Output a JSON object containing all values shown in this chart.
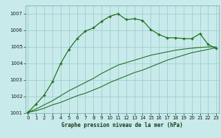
{
  "xlabel": "Graphe pression niveau de la mer (hPa)",
  "bg_color": "#c8eaea",
  "grid_color": "#9ecece",
  "line_color": "#1e6e1e",
  "ylim": [
    1001,
    1007.5
  ],
  "xlim": [
    -0.3,
    23.3
  ],
  "yticks": [
    1001,
    1002,
    1003,
    1004,
    1005,
    1006,
    1007
  ],
  "xticks": [
    0,
    1,
    2,
    3,
    4,
    5,
    6,
    7,
    8,
    9,
    10,
    11,
    12,
    13,
    14,
    15,
    16,
    17,
    18,
    19,
    20,
    21,
    22,
    23
  ],
  "series1_x": [
    0,
    1,
    2,
    3,
    4,
    5,
    6,
    7,
    8,
    9,
    10,
    11,
    12,
    13,
    14,
    15,
    16,
    17,
    18,
    19,
    20,
    21,
    22,
    23
  ],
  "series1_y": [
    1001.05,
    1001.55,
    1002.1,
    1002.9,
    1004.0,
    1004.85,
    1005.5,
    1005.95,
    1006.15,
    1006.55,
    1006.85,
    1007.0,
    1006.65,
    1006.7,
    1006.6,
    1006.05,
    1005.75,
    1005.55,
    1005.55,
    1005.5,
    1005.5,
    1005.8,
    1005.15,
    1004.9
  ],
  "series2_x": [
    0,
    1,
    2,
    3,
    4,
    5,
    6,
    7,
    8,
    9,
    10,
    11,
    12,
    13,
    14,
    15,
    16,
    17,
    18,
    19,
    20,
    21,
    22,
    23
  ],
  "series2_y": [
    1001.05,
    1001.15,
    1001.3,
    1001.5,
    1001.65,
    1001.85,
    1002.05,
    1002.2,
    1002.4,
    1002.6,
    1002.85,
    1003.05,
    1003.25,
    1003.45,
    1003.6,
    1003.8,
    1004.0,
    1004.2,
    1004.35,
    1004.5,
    1004.65,
    1004.75,
    1004.85,
    1004.95
  ],
  "series3_x": [
    0,
    1,
    2,
    3,
    4,
    5,
    6,
    7,
    8,
    9,
    10,
    11,
    12,
    13,
    14,
    15,
    16,
    17,
    18,
    19,
    20,
    21,
    22,
    23
  ],
  "series3_y": [
    1001.05,
    1001.25,
    1001.5,
    1001.75,
    1002.05,
    1002.35,
    1002.6,
    1002.85,
    1003.1,
    1003.4,
    1003.65,
    1003.9,
    1004.05,
    1004.2,
    1004.35,
    1004.5,
    1004.6,
    1004.7,
    1004.8,
    1004.87,
    1004.92,
    1004.97,
    1005.0,
    1005.0
  ]
}
